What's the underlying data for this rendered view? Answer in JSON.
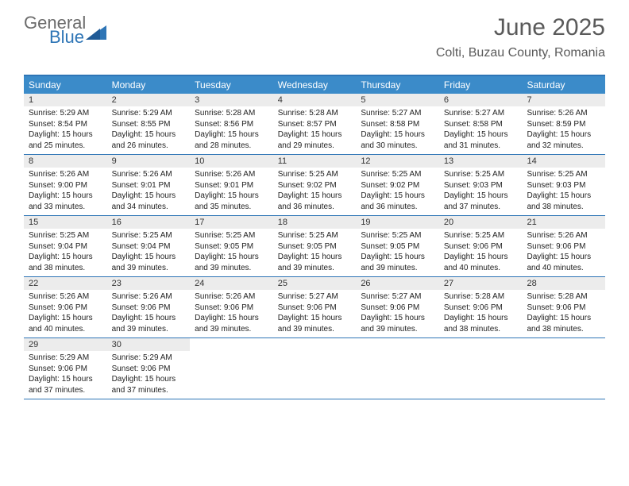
{
  "logo": {
    "general": "General",
    "blue": "Blue",
    "shape_color": "#2e75b6",
    "general_color": "#6b6b6b"
  },
  "title": "June 2025",
  "location": "Colti, Buzau County, Romania",
  "colors": {
    "header_bg": "#3b8bc9",
    "border": "#2e75b6",
    "daynum_bg": "#ececec",
    "text": "#222222",
    "title_color": "#5a5a5a"
  },
  "day_headers": [
    "Sunday",
    "Monday",
    "Tuesday",
    "Wednesday",
    "Thursday",
    "Friday",
    "Saturday"
  ],
  "weeks": [
    [
      {
        "n": "1",
        "sr": "5:29 AM",
        "ss": "8:54 PM",
        "dl": "15 hours and 25 minutes."
      },
      {
        "n": "2",
        "sr": "5:29 AM",
        "ss": "8:55 PM",
        "dl": "15 hours and 26 minutes."
      },
      {
        "n": "3",
        "sr": "5:28 AM",
        "ss": "8:56 PM",
        "dl": "15 hours and 28 minutes."
      },
      {
        "n": "4",
        "sr": "5:28 AM",
        "ss": "8:57 PM",
        "dl": "15 hours and 29 minutes."
      },
      {
        "n": "5",
        "sr": "5:27 AM",
        "ss": "8:58 PM",
        "dl": "15 hours and 30 minutes."
      },
      {
        "n": "6",
        "sr": "5:27 AM",
        "ss": "8:58 PM",
        "dl": "15 hours and 31 minutes."
      },
      {
        "n": "7",
        "sr": "5:26 AM",
        "ss": "8:59 PM",
        "dl": "15 hours and 32 minutes."
      }
    ],
    [
      {
        "n": "8",
        "sr": "5:26 AM",
        "ss": "9:00 PM",
        "dl": "15 hours and 33 minutes."
      },
      {
        "n": "9",
        "sr": "5:26 AM",
        "ss": "9:01 PM",
        "dl": "15 hours and 34 minutes."
      },
      {
        "n": "10",
        "sr": "5:26 AM",
        "ss": "9:01 PM",
        "dl": "15 hours and 35 minutes."
      },
      {
        "n": "11",
        "sr": "5:25 AM",
        "ss": "9:02 PM",
        "dl": "15 hours and 36 minutes."
      },
      {
        "n": "12",
        "sr": "5:25 AM",
        "ss": "9:02 PM",
        "dl": "15 hours and 36 minutes."
      },
      {
        "n": "13",
        "sr": "5:25 AM",
        "ss": "9:03 PM",
        "dl": "15 hours and 37 minutes."
      },
      {
        "n": "14",
        "sr": "5:25 AM",
        "ss": "9:03 PM",
        "dl": "15 hours and 38 minutes."
      }
    ],
    [
      {
        "n": "15",
        "sr": "5:25 AM",
        "ss": "9:04 PM",
        "dl": "15 hours and 38 minutes."
      },
      {
        "n": "16",
        "sr": "5:25 AM",
        "ss": "9:04 PM",
        "dl": "15 hours and 39 minutes."
      },
      {
        "n": "17",
        "sr": "5:25 AM",
        "ss": "9:05 PM",
        "dl": "15 hours and 39 minutes."
      },
      {
        "n": "18",
        "sr": "5:25 AM",
        "ss": "9:05 PM",
        "dl": "15 hours and 39 minutes."
      },
      {
        "n": "19",
        "sr": "5:25 AM",
        "ss": "9:05 PM",
        "dl": "15 hours and 39 minutes."
      },
      {
        "n": "20",
        "sr": "5:25 AM",
        "ss": "9:06 PM",
        "dl": "15 hours and 40 minutes."
      },
      {
        "n": "21",
        "sr": "5:26 AM",
        "ss": "9:06 PM",
        "dl": "15 hours and 40 minutes."
      }
    ],
    [
      {
        "n": "22",
        "sr": "5:26 AM",
        "ss": "9:06 PM",
        "dl": "15 hours and 40 minutes."
      },
      {
        "n": "23",
        "sr": "5:26 AM",
        "ss": "9:06 PM",
        "dl": "15 hours and 39 minutes."
      },
      {
        "n": "24",
        "sr": "5:26 AM",
        "ss": "9:06 PM",
        "dl": "15 hours and 39 minutes."
      },
      {
        "n": "25",
        "sr": "5:27 AM",
        "ss": "9:06 PM",
        "dl": "15 hours and 39 minutes."
      },
      {
        "n": "26",
        "sr": "5:27 AM",
        "ss": "9:06 PM",
        "dl": "15 hours and 39 minutes."
      },
      {
        "n": "27",
        "sr": "5:28 AM",
        "ss": "9:06 PM",
        "dl": "15 hours and 38 minutes."
      },
      {
        "n": "28",
        "sr": "5:28 AM",
        "ss": "9:06 PM",
        "dl": "15 hours and 38 minutes."
      }
    ],
    [
      {
        "n": "29",
        "sr": "5:29 AM",
        "ss": "9:06 PM",
        "dl": "15 hours and 37 minutes."
      },
      {
        "n": "30",
        "sr": "5:29 AM",
        "ss": "9:06 PM",
        "dl": "15 hours and 37 minutes."
      },
      null,
      null,
      null,
      null,
      null
    ]
  ],
  "label_sunrise": "Sunrise: ",
  "label_sunset": "Sunset: ",
  "label_daylight": "Daylight: "
}
